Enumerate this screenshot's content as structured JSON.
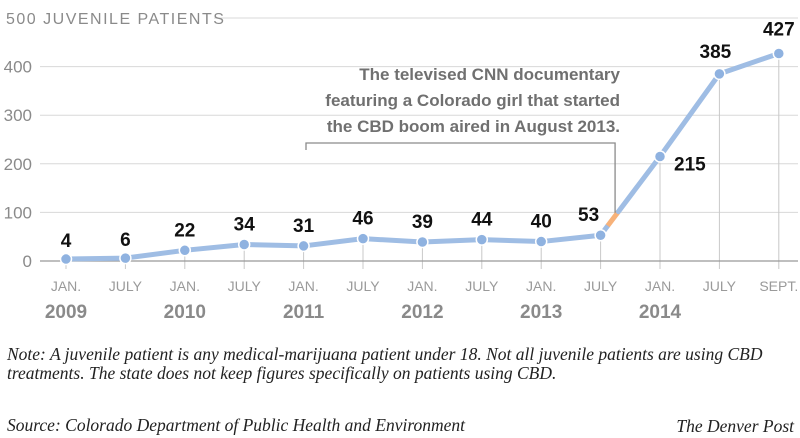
{
  "chart_data": {
    "type": "line",
    "y_axis_title": "500 JUVENILE PATIENTS",
    "y_ticks": [
      0,
      100,
      200,
      300,
      400
    ],
    "ylim": [
      0,
      500
    ],
    "grid": true,
    "x_labels": [
      "JAN.",
      "JULY",
      "JAN.",
      "JULY",
      "JAN.",
      "JULY",
      "JAN.",
      "JULY",
      "JAN.",
      "JULY",
      "JAN.",
      "JULY",
      "SEPT."
    ],
    "year_labels": [
      "2009",
      "2010",
      "2011",
      "2012",
      "2013",
      "2014"
    ],
    "x": [
      "JAN. 2009",
      "JULY 2009",
      "JAN. 2010",
      "JULY 2010",
      "JAN. 2011",
      "JULY 2011",
      "JAN. 2012",
      "JULY 2012",
      "JAN. 2013",
      "JULY 2013",
      "JAN. 2014",
      "JULY 2014",
      "SEPT. 2014"
    ],
    "values": [
      4,
      6,
      22,
      34,
      31,
      46,
      39,
      44,
      40,
      53,
      215,
      385,
      427
    ],
    "annotation": {
      "lines": [
        "The televised CNN documentary",
        "featuring a Colorado girl that started",
        "the CBD boom aired in August 2013."
      ],
      "at": "August 2013"
    },
    "colors": {
      "line": "#9fbde4",
      "marker": "#8fb2e0",
      "highlight": "#f7b27a",
      "grid": "#d8d8d8",
      "axis": "#999999"
    }
  },
  "note": "Note: A juvenile patient is any medical-marijuana patient under 18. Not all juvenile patients are using CBD treatments. The state does not keep figures specifically on patients using CBD.",
  "source": "Source: Colorado Department of Public Health and Environment",
  "credit": "The Denver Post"
}
